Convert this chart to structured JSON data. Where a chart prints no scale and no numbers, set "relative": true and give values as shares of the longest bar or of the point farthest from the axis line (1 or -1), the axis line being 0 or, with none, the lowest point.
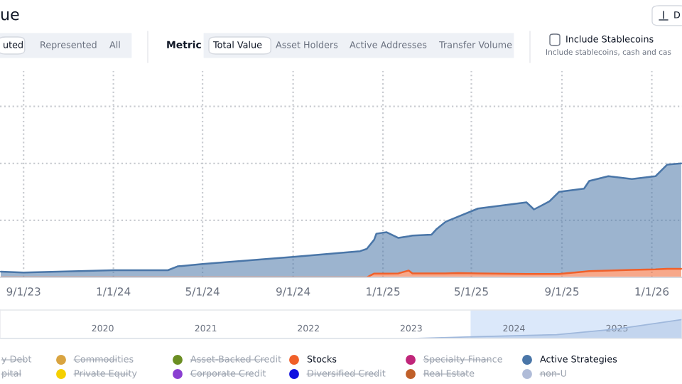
{
  "chart_data": [
    {
      "type": "area",
      "title": "ue",
      "stacked": true,
      "relative": true,
      "grid": true,
      "legend": "bottom",
      "annotations": [
        "uted",
        "Represented",
        "All",
        "Metric",
        "Total Value",
        "Asset Holders",
        "Active Addresses",
        "Transfer Volume",
        "Include Stablecoins",
        "Include stablecoins, cash and cas",
        "D"
      ],
      "x": [
        "2023-08-01",
        "2023-09-01",
        "2024-01-01",
        "2024-03-15",
        "2024-03-28",
        "2024-05-01",
        "2024-09-01",
        "2024-12-01",
        "2024-12-10",
        "2024-12-20",
        "2024-12-23",
        "2025-01-06",
        "2025-01-22",
        "2025-02-05",
        "2025-02-10",
        "2025-03-08",
        "2025-03-15",
        "2025-03-27",
        "2025-04-13",
        "2025-05-10",
        "2025-07-15",
        "2025-07-25",
        "2025-08-15",
        "2025-08-28",
        "2025-10-01",
        "2025-10-08",
        "2025-11-03",
        "2025-12-05",
        "2026-01-06",
        "2026-01-22",
        "2026-02-10"
      ],
      "xlim": [
        "2023-07-31",
        "2026-02-11"
      ],
      "xticks": [
        {
          "value": "2023-09-01",
          "label": "9/1/23"
        },
        {
          "value": "2024-01-01",
          "label": "1/1/24"
        },
        {
          "value": "2024-05-01",
          "label": "5/1/24"
        },
        {
          "value": "2024-09-01",
          "label": "9/1/24"
        },
        {
          "value": "2025-01-01",
          "label": "1/1/25"
        },
        {
          "value": "2025-05-01",
          "label": "5/1/25"
        },
        {
          "value": "2025-09-01",
          "label": "9/1/25"
        },
        {
          "value": "2026-01-01",
          "label": "1/1/26"
        }
      ],
      "series": [
        {
          "name": "y Debt",
          "color": "#9aa0a6",
          "values": [
            null,
            null,
            null,
            null,
            null,
            null,
            null,
            null,
            null,
            null,
            null,
            null,
            null,
            null,
            null,
            null,
            null,
            null,
            null,
            null,
            null,
            null,
            null,
            null,
            null,
            null,
            null,
            null,
            null,
            null,
            null
          ]
        },
        {
          "name": "pital",
          "color": "#7f8c9a",
          "values": [
            null,
            null,
            null,
            null,
            null,
            null,
            null,
            null,
            null,
            null,
            null,
            null,
            null,
            null,
            null,
            null,
            null,
            null,
            null,
            null,
            null,
            null,
            null,
            null,
            null,
            null,
            null,
            null,
            null,
            null,
            null
          ]
        },
        {
          "name": "Commodities",
          "color": "#d9a441",
          "values": [
            null,
            null,
            null,
            null,
            null,
            null,
            null,
            null,
            null,
            null,
            null,
            null,
            null,
            null,
            null,
            null,
            null,
            null,
            null,
            null,
            null,
            null,
            null,
            null,
            null,
            null,
            null,
            null,
            null,
            null,
            null
          ]
        },
        {
          "name": "Private Equity",
          "color": "#f5d000",
          "values": [
            null,
            null,
            null,
            null,
            null,
            null,
            null,
            null,
            null,
            null,
            null,
            null,
            null,
            null,
            null,
            null,
            null,
            null,
            null,
            null,
            null,
            null,
            null,
            null,
            null,
            null,
            null,
            null,
            null,
            null,
            null
          ]
        },
        {
          "name": "Asset-Backed Credit",
          "color": "#6b8e23",
          "values": [
            null,
            null,
            null,
            null,
            null,
            null,
            null,
            null,
            null,
            null,
            null,
            null,
            null,
            null,
            null,
            null,
            null,
            null,
            null,
            null,
            null,
            null,
            null,
            null,
            null,
            null,
            null,
            null,
            null,
            null,
            null
          ]
        },
        {
          "name": "Corporate Credit",
          "color": "#8a3fd1",
          "values": [
            null,
            null,
            null,
            null,
            null,
            null,
            null,
            null,
            null,
            null,
            null,
            null,
            null,
            null,
            null,
            null,
            null,
            null,
            null,
            null,
            null,
            null,
            null,
            null,
            null,
            null,
            null,
            null,
            null,
            null,
            null
          ]
        },
        {
          "name": "Stocks",
          "color": "#f0602a",
          "values": [
            0,
            0,
            0,
            0,
            0,
            0,
            0,
            0,
            0,
            0.033,
            0.033,
            0.033,
            0.035,
            0.06,
            0.035,
            0.035,
            0.035,
            0.035,
            0.038,
            0.035,
            0.03,
            0.03,
            0.03,
            0.03,
            0.05,
            0.055,
            0.06,
            0.065,
            0.07,
            0.075,
            0.075
          ]
        },
        {
          "name": "Diversified Credit",
          "color": "#1010e0",
          "values": [
            null,
            null,
            null,
            null,
            null,
            null,
            null,
            null,
            null,
            null,
            null,
            null,
            null,
            null,
            null,
            null,
            null,
            null,
            null,
            null,
            null,
            null,
            null,
            null,
            null,
            null,
            null,
            null,
            null,
            null,
            null
          ]
        },
        {
          "name": "Specialty Finance",
          "color": "#c0267a",
          "values": [
            null,
            null,
            null,
            null,
            null,
            null,
            null,
            null,
            null,
            null,
            null,
            null,
            null,
            null,
            null,
            null,
            null,
            null,
            null,
            null,
            null,
            null,
            null,
            null,
            null,
            null,
            null,
            null,
            null,
            null,
            null
          ]
        },
        {
          "name": "Real Estate",
          "color": "#c0602a",
          "values": [
            null,
            null,
            null,
            null,
            null,
            null,
            null,
            null,
            null,
            null,
            null,
            null,
            null,
            null,
            null,
            null,
            null,
            null,
            null,
            null,
            null,
            null,
            null,
            null,
            null,
            null,
            null,
            null,
            null,
            null,
            null
          ]
        },
        {
          "name": "Active Strategies",
          "color": "#4a76a8",
          "values": [
            0.05,
            0.042,
            0.0625,
            0.0625,
            0.096,
            0.117,
            0.18,
            0.23,
            0.25,
            0.297,
            0.35,
            0.363,
            0.311,
            0.3,
            0.332,
            0.34,
            0.39,
            0.4525,
            0.495,
            0.569,
            0.628,
            0.566,
            0.637,
            0.72,
            0.729,
            0.791,
            0.8275,
            0.7975,
            0.8175,
            0.915,
            0.925
          ]
        },
        {
          "name": "non-U",
          "color": "#b0bcd8",
          "values": [
            null,
            null,
            null,
            null,
            null,
            null,
            null,
            null,
            null,
            null,
            null,
            null,
            null,
            null,
            null,
            null,
            null,
            null,
            null,
            null,
            null,
            null,
            null,
            null,
            null,
            null,
            null,
            null,
            null,
            null,
            null
          ]
        }
      ]
    },
    {
      "type": "area",
      "relative": true,
      "color": "#9fb8dc",
      "x": [
        "2019-01-01",
        "2023-01-01",
        "2023-09-01",
        "2024-06-01",
        "2025-01-01",
        "2025-08-20"
      ],
      "values": [
        0,
        0,
        0.1,
        0.2,
        0.5,
        1.0
      ],
      "xlim": [
        "2019-01-01",
        "2025-08-20"
      ],
      "xticks": [
        {
          "value": "2020-01-01",
          "label": "2020"
        },
        {
          "value": "2021-01-01",
          "label": "2021"
        },
        {
          "value": "2022-01-01",
          "label": "2022"
        },
        {
          "value": "2023-01-01",
          "label": "2023"
        },
        {
          "value": "2024-01-01",
          "label": "2024"
        },
        {
          "value": "2025-01-01",
          "label": "2025"
        }
      ],
      "bands": [
        {
          "axis": "x",
          "from": "2023-07-31",
          "to": "2025-08-20",
          "color": "#dbe8fa"
        }
      ]
    }
  ]
}
